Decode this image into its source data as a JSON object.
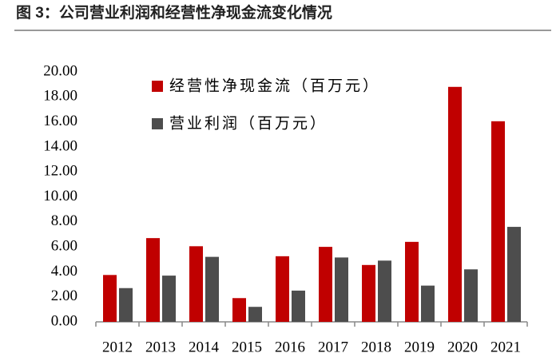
{
  "chart_data": {
    "type": "bar",
    "title": "图 3：公司营业利润和经营性净现金流变化情况",
    "categories": [
      "2012",
      "2013",
      "2014",
      "2015",
      "2016",
      "2017",
      "2018",
      "2019",
      "2020",
      "2021"
    ],
    "series": [
      {
        "name": "经营性净现金流（百万元）",
        "color": "#c00000",
        "values": [
          3.75,
          6.7,
          6.05,
          1.9,
          5.25,
          6.0,
          4.55,
          6.4,
          18.8,
          16.05
        ]
      },
      {
        "name": "营业利润（百万元）",
        "color": "#4d4d4d",
        "values": [
          2.7,
          3.7,
          5.2,
          1.2,
          2.5,
          5.15,
          4.9,
          2.9,
          4.2,
          7.6
        ]
      }
    ],
    "ylim": [
      0,
      20
    ],
    "yticks": [
      {
        "value": 0,
        "label": "0.00"
      },
      {
        "value": 2,
        "label": "2.00"
      },
      {
        "value": 4,
        "label": "4.00"
      },
      {
        "value": 6,
        "label": "6.00"
      },
      {
        "value": 8,
        "label": "8.00"
      },
      {
        "value": 10,
        "label": "10.00"
      },
      {
        "value": 12,
        "label": "12.00"
      },
      {
        "value": 14,
        "label": "14.00"
      },
      {
        "value": 16,
        "label": "16.00"
      },
      {
        "value": 18,
        "label": "18.00"
      },
      {
        "value": 20,
        "label": "20.00"
      }
    ],
    "grid": false,
    "legend": "upper-left"
  }
}
